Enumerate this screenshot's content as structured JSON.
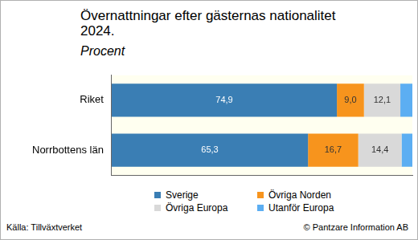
{
  "chart_data": {
    "type": "bar",
    "orientation": "horizontal",
    "stacked": true,
    "title": "Övernattningar efter gästernas nationalitet 2024.",
    "subtitle": "Procent",
    "source": "Källa: Tillväxtverket",
    "copyright": "© Pantzare Information AB",
    "categories": [
      "Riket",
      "Norrbottens län"
    ],
    "series": [
      {
        "name": "Sverige",
        "color": "#3a7eb4",
        "values": [
          74.9,
          65.3
        ],
        "value_labels": [
          "74,9",
          "65,3"
        ]
      },
      {
        "name": "Övriga Norden",
        "color": "#f7941d",
        "values": [
          9.0,
          16.7
        ],
        "value_labels": [
          "9,0",
          "16,7"
        ]
      },
      {
        "name": "Övriga Europa",
        "color": "#d9d9d9",
        "values": [
          12.1,
          14.4
        ],
        "value_labels": [
          "12,1",
          "14,4"
        ]
      },
      {
        "name": "Utanför Europa",
        "color": "#5caef2",
        "values": [
          4.0,
          3.6
        ],
        "value_labels": [
          null,
          null
        ]
      }
    ],
    "xlim": [
      0,
      100
    ],
    "grid": false,
    "legend": "bottom",
    "data_labels": true,
    "tick_labels": "y"
  }
}
